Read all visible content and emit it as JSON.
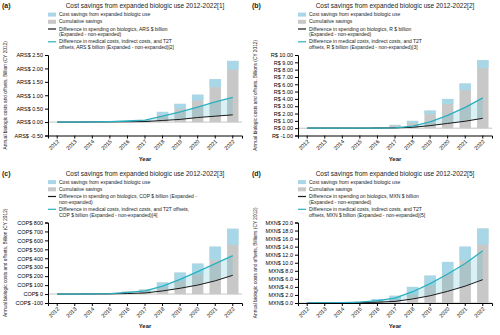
{
  "chart_data": [
    {
      "type": "bar",
      "title": "Cost savings from expanded biologic use 2012-2022[1]",
      "annotations": [
        "(a)"
      ],
      "xlabel": "Year",
      "ylabel": "Annual biologic costs and offsets, Billion (CY 2012)",
      "categories": [
        "2012",
        "2013",
        "2014",
        "2015",
        "2016",
        "2017",
        "2018",
        "2019",
        "2020",
        "2021",
        "2022"
      ],
      "series": [
        {
          "name": "Cost savings from expanded biologic use",
          "type": "bar",
          "color": "#a8d8e8",
          "values": [
            0.0,
            0.0,
            0.0,
            0.0,
            0.0,
            0.02,
            0.12,
            0.18,
            0.22,
            0.3,
            0.32
          ]
        },
        {
          "name": "Cumulative savings",
          "type": "bar",
          "color": "#c8c8c8",
          "values": [
            0.0,
            0.0,
            0.01,
            0.02,
            0.04,
            0.07,
            0.38,
            0.68,
            1.02,
            1.6,
            2.28
          ]
        },
        {
          "name": "Difference in spending on biologics, ARS $ billion\n(Expanded - non-expanded)",
          "type": "line",
          "color": "#1a1a1a",
          "values": [
            0.0,
            0.0,
            0.005,
            0.008,
            0.012,
            0.02,
            0.06,
            0.1,
            0.17,
            0.22,
            0.27
          ]
        },
        {
          "name": "Difference in medical costs, indirect costs, and T2T\noffsets, ARS $ billion (Expanded - non-expanded)[2]",
          "type": "line",
          "color": "#2ab0c0",
          "values": [
            0.0,
            0.0,
            0.01,
            0.02,
            0.04,
            0.07,
            0.22,
            0.38,
            0.56,
            0.75,
            0.92
          ]
        }
      ],
      "ylim": [
        -0.5,
        2.5
      ],
      "yticks": [
        {
          "value": -0.5,
          "label": "ARS$ -0.50"
        },
        {
          "value": 0.0,
          "label": "ARS$ 0.00"
        },
        {
          "value": 0.5,
          "label": "ARS$ 0.50"
        },
        {
          "value": 1.0,
          "label": "ARS$ 1.00"
        },
        {
          "value": 1.5,
          "label": "ARS$ 1.50"
        },
        {
          "value": 2.0,
          "label": "ARS$ 2.00"
        },
        {
          "value": 2.5,
          "label": "ARS$ 2.50"
        }
      ],
      "legend": "upper left",
      "grid": false
    },
    {
      "type": "bar",
      "title": "Cost savings from expanded biologic use 2012-2022[2]",
      "annotations": [
        "(b)"
      ],
      "xlabel": "Year",
      "ylabel": "Annual biologic costs and offsets, Billions (CY 2012)",
      "categories": [
        "2012",
        "2013",
        "2014",
        "2015",
        "2016",
        "2017",
        "2018",
        "2019",
        "2020",
        "2021",
        "2022"
      ],
      "series": [
        {
          "name": "Cost savings from expanded biologic use",
          "type": "bar",
          "color": "#a8d8e8",
          "values": [
            0.0,
            0.0,
            0.0,
            0.0,
            0.0,
            0.1,
            0.3,
            0.5,
            0.7,
            0.9,
            1.1
          ]
        },
        {
          "name": "Cumulative savings",
          "type": "bar",
          "color": "#c8c8c8",
          "values": [
            0.02,
            0.02,
            0.02,
            -0.05,
            0.15,
            0.45,
            1.0,
            2.4,
            4.0,
            6.1,
            9.3
          ]
        },
        {
          "name": "Difference in spending on biologics, R $ billion\n(Expanded - non-expanded)",
          "type": "line",
          "color": "#1a1a1a",
          "values": [
            0.02,
            0.02,
            0.02,
            0.01,
            0.02,
            0.04,
            0.12,
            0.35,
            0.65,
            0.95,
            1.35
          ]
        },
        {
          "name": "Difference in medical costs, indirect costs, and T2T\noffsets, R $ billion (Expanded - non-expanded)[3]",
          "type": "line",
          "color": "#2ab0c0",
          "values": [
            0.02,
            0.02,
            0.02,
            0.01,
            0.02,
            0.05,
            0.28,
            0.85,
            1.75,
            2.85,
            4.15
          ]
        }
      ],
      "ylim": [
        -1.0,
        10.0
      ],
      "yticks": [
        {
          "value": -1.0,
          "label": "R$ -1.00"
        },
        {
          "value": 0.0,
          "label": "R$ 0.00"
        },
        {
          "value": 1.0,
          "label": "R$ 1.00"
        },
        {
          "value": 2.0,
          "label": "R$ 2.00"
        },
        {
          "value": 3.0,
          "label": "R$ 3.00"
        },
        {
          "value": 4.0,
          "label": "R$ 4.00"
        },
        {
          "value": 5.0,
          "label": "R$ 5.00"
        },
        {
          "value": 6.0,
          "label": "R$ 6.00"
        },
        {
          "value": 7.0,
          "label": "R$ 7.00"
        },
        {
          "value": 8.0,
          "label": "R$ 8.00"
        },
        {
          "value": 9.0,
          "label": "R$ 9.00"
        },
        {
          "value": 10.0,
          "label": "R$ 10.00"
        }
      ],
      "legend": "upper left",
      "grid": false
    },
    {
      "type": "bar",
      "title": "Cost savings from expanded biologic use 2012-2022[3]",
      "annotations": [
        "(c)"
      ],
      "xlabel": "Year",
      "ylabel": "Annual biologic costs and offsets, Billion (CY 2012)",
      "categories": [
        "2012",
        "2013",
        "2014",
        "2015",
        "2016",
        "2017",
        "2018",
        "2019",
        "2020",
        "2021",
        "2022"
      ],
      "series": [
        {
          "name": "Cost savings from expanded biologic use",
          "type": "bar",
          "color": "#a8d8e8",
          "values": [
            0.0,
            0.0,
            0.0,
            0.0,
            0.0,
            10,
            50,
            90,
            120,
            150,
            180
          ]
        },
        {
          "name": "Cumulative savings",
          "type": "bar",
          "color": "#c8c8c8",
          "values": [
            0.0,
            0.0,
            2,
            5,
            30,
            50,
            130,
            240,
            340,
            530,
            730
          ]
        },
        {
          "name": "Difference in spending on biologics, COP $ billion (Expanded -\nnon-expanded)",
          "type": "line",
          "color": "#1a1a1a",
          "values": [
            0.0,
            0.0,
            1,
            2,
            6,
            12,
            35,
            65,
            100,
            148,
            210
          ]
        },
        {
          "name": "Difference in medical costs, indirect costs, and T2T offsets,\nCOP $ billion (Expanded - non-expanded)[4]",
          "type": "line",
          "color": "#2ab0c0",
          "values": [
            0.0,
            0.0,
            2,
            5,
            18,
            35,
            88,
            165,
            250,
            340,
            430
          ]
        }
      ],
      "ylim": [
        -100,
        800
      ],
      "yticks": [
        {
          "value": -100,
          "label": "COP$ -100"
        },
        {
          "value": 0,
          "label": "COP$ 0"
        },
        {
          "value": 100,
          "label": "COP$ 100"
        },
        {
          "value": 200,
          "label": "COP$ 200"
        },
        {
          "value": 300,
          "label": "COP$ 300"
        },
        {
          "value": 400,
          "label": "COP$ 400"
        },
        {
          "value": 500,
          "label": "COP$ 500"
        },
        {
          "value": 600,
          "label": "COP$ 600"
        },
        {
          "value": 700,
          "label": "COP$ 700"
        },
        {
          "value": 800,
          "label": "COP$ 800"
        }
      ],
      "legend": "upper left",
      "grid": false
    },
    {
      "type": "bar",
      "title": "Cost savings from expanded biologic use 2012-2022[5]",
      "annotations": [
        "(d)"
      ],
      "xlabel": "Year",
      "ylabel": "Annual biologic costs and offsets, Billions (CY 2012)",
      "categories": [
        "2012",
        "2013",
        "2014",
        "2015",
        "2016",
        "2017",
        "2018",
        "2019",
        "2020",
        "2021",
        "2022"
      ],
      "series": [
        {
          "name": "Cost savings from expanded biologic use",
          "type": "bar",
          "color": "#a8d8e8",
          "values": [
            0.0,
            0.0,
            0.0,
            0.0,
            0.5,
            1.0,
            2.0,
            2.5,
            3.0,
            3.5,
            4.0
          ]
        },
        {
          "name": "Cumulative savings",
          "type": "bar",
          "color": "#c8c8c8",
          "values": [
            0.0,
            0.0,
            0.2,
            0.4,
            1.0,
            1.8,
            4.0,
            6.8,
            10.2,
            14.0,
            18.5
          ]
        },
        {
          "name": "Difference in spending on biologics, MXN $ billion\n(Expanded - non-expanded)",
          "type": "line",
          "color": "#1a1a1a",
          "values": [
            0.0,
            0.0,
            0.05,
            0.1,
            0.2,
            0.4,
            1.0,
            1.8,
            2.9,
            4.2,
            5.8
          ]
        },
        {
          "name": "Difference in medical costs, indirect costs, and T2T\noffsets, MXN $ billion (Expanded - non-expanded)[5]",
          "type": "line",
          "color": "#2ab0c0",
          "values": [
            0.0,
            0.0,
            0.1,
            0.2,
            0.6,
            1.2,
            2.8,
            4.8,
            7.2,
            9.8,
            13.0
          ]
        }
      ],
      "ylim": [
        0,
        20.0
      ],
      "yticks": [
        {
          "value": 0,
          "label": "MXN$ 0.0"
        },
        {
          "value": 2.0,
          "label": "MXN$ 2.0"
        },
        {
          "value": 4.0,
          "label": "MXN$ 4.0"
        },
        {
          "value": 6.0,
          "label": "MXN$ 6.0"
        },
        {
          "value": 8.0,
          "label": "MXN$ 8.0"
        },
        {
          "value": 10.0,
          "label": "MXN$ 10.0"
        },
        {
          "value": 12.0,
          "label": "MXN$ 12.0"
        },
        {
          "value": 14.0,
          "label": "MXN$ 14.0"
        },
        {
          "value": 16.0,
          "label": "MXN$ 16.0"
        },
        {
          "value": 18.0,
          "label": "MXN$ 18.0"
        },
        {
          "value": 20.0,
          "label": "MXN$ 20.0"
        }
      ],
      "legend": "upper left",
      "grid": false
    }
  ]
}
